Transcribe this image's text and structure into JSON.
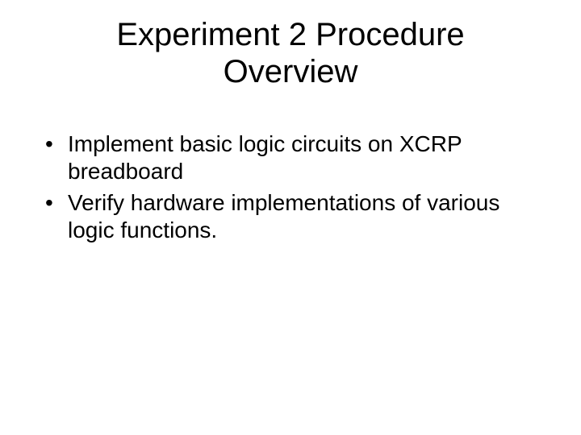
{
  "slide": {
    "title_line1": "Experiment 2 Procedure",
    "title_line2": "Overview",
    "bullets": [
      "Implement basic logic circuits on XCRP breadboard",
      "Verify hardware implementations of various logic functions."
    ],
    "background_color": "#ffffff",
    "text_color": "#000000",
    "title_fontsize": 40,
    "body_fontsize": 28,
    "font_family": "Arial, Helvetica, sans-serif"
  }
}
